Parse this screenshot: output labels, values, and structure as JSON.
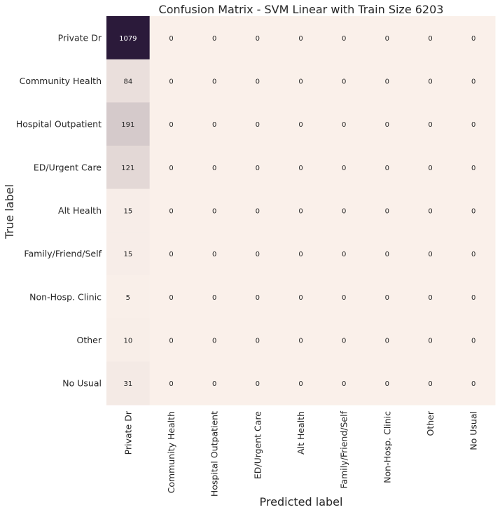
{
  "chart_data": {
    "type": "heatmap",
    "title": "Confusion Matrix - SVM Linear with Train Size 6203",
    "xlabel": "Predicted label",
    "ylabel": "True label",
    "row_labels": [
      "Private Dr",
      "Community Health",
      "Hospital Outpatient",
      "ED/Urgent Care",
      "Alt Health",
      "Family/Friend/Self",
      "Non-Hosp. Clinic",
      "Other",
      "No Usual"
    ],
    "col_labels": [
      "Private Dr",
      "Community Health",
      "Hospital Outpatient",
      "ED/Urgent Care",
      "Alt Health",
      "Family/Friend/Self",
      "Non-Hosp. Clinic",
      "Other",
      "No Usual"
    ],
    "values": [
      [
        1079,
        0,
        0,
        0,
        0,
        0,
        0,
        0,
        0
      ],
      [
        84,
        0,
        0,
        0,
        0,
        0,
        0,
        0,
        0
      ],
      [
        191,
        0,
        0,
        0,
        0,
        0,
        0,
        0,
        0
      ],
      [
        121,
        0,
        0,
        0,
        0,
        0,
        0,
        0,
        0
      ],
      [
        15,
        0,
        0,
        0,
        0,
        0,
        0,
        0,
        0
      ],
      [
        15,
        0,
        0,
        0,
        0,
        0,
        0,
        0,
        0
      ],
      [
        5,
        0,
        0,
        0,
        0,
        0,
        0,
        0,
        0
      ],
      [
        10,
        0,
        0,
        0,
        0,
        0,
        0,
        0,
        0
      ],
      [
        31,
        0,
        0,
        0,
        0,
        0,
        0,
        0,
        0
      ]
    ],
    "colormap": {
      "low": "#faf0ea",
      "high": "#2b1a3a",
      "text_on_low": "#262626",
      "text_on_high": "#ffffff"
    },
    "colorbar": false,
    "grid": false
  }
}
